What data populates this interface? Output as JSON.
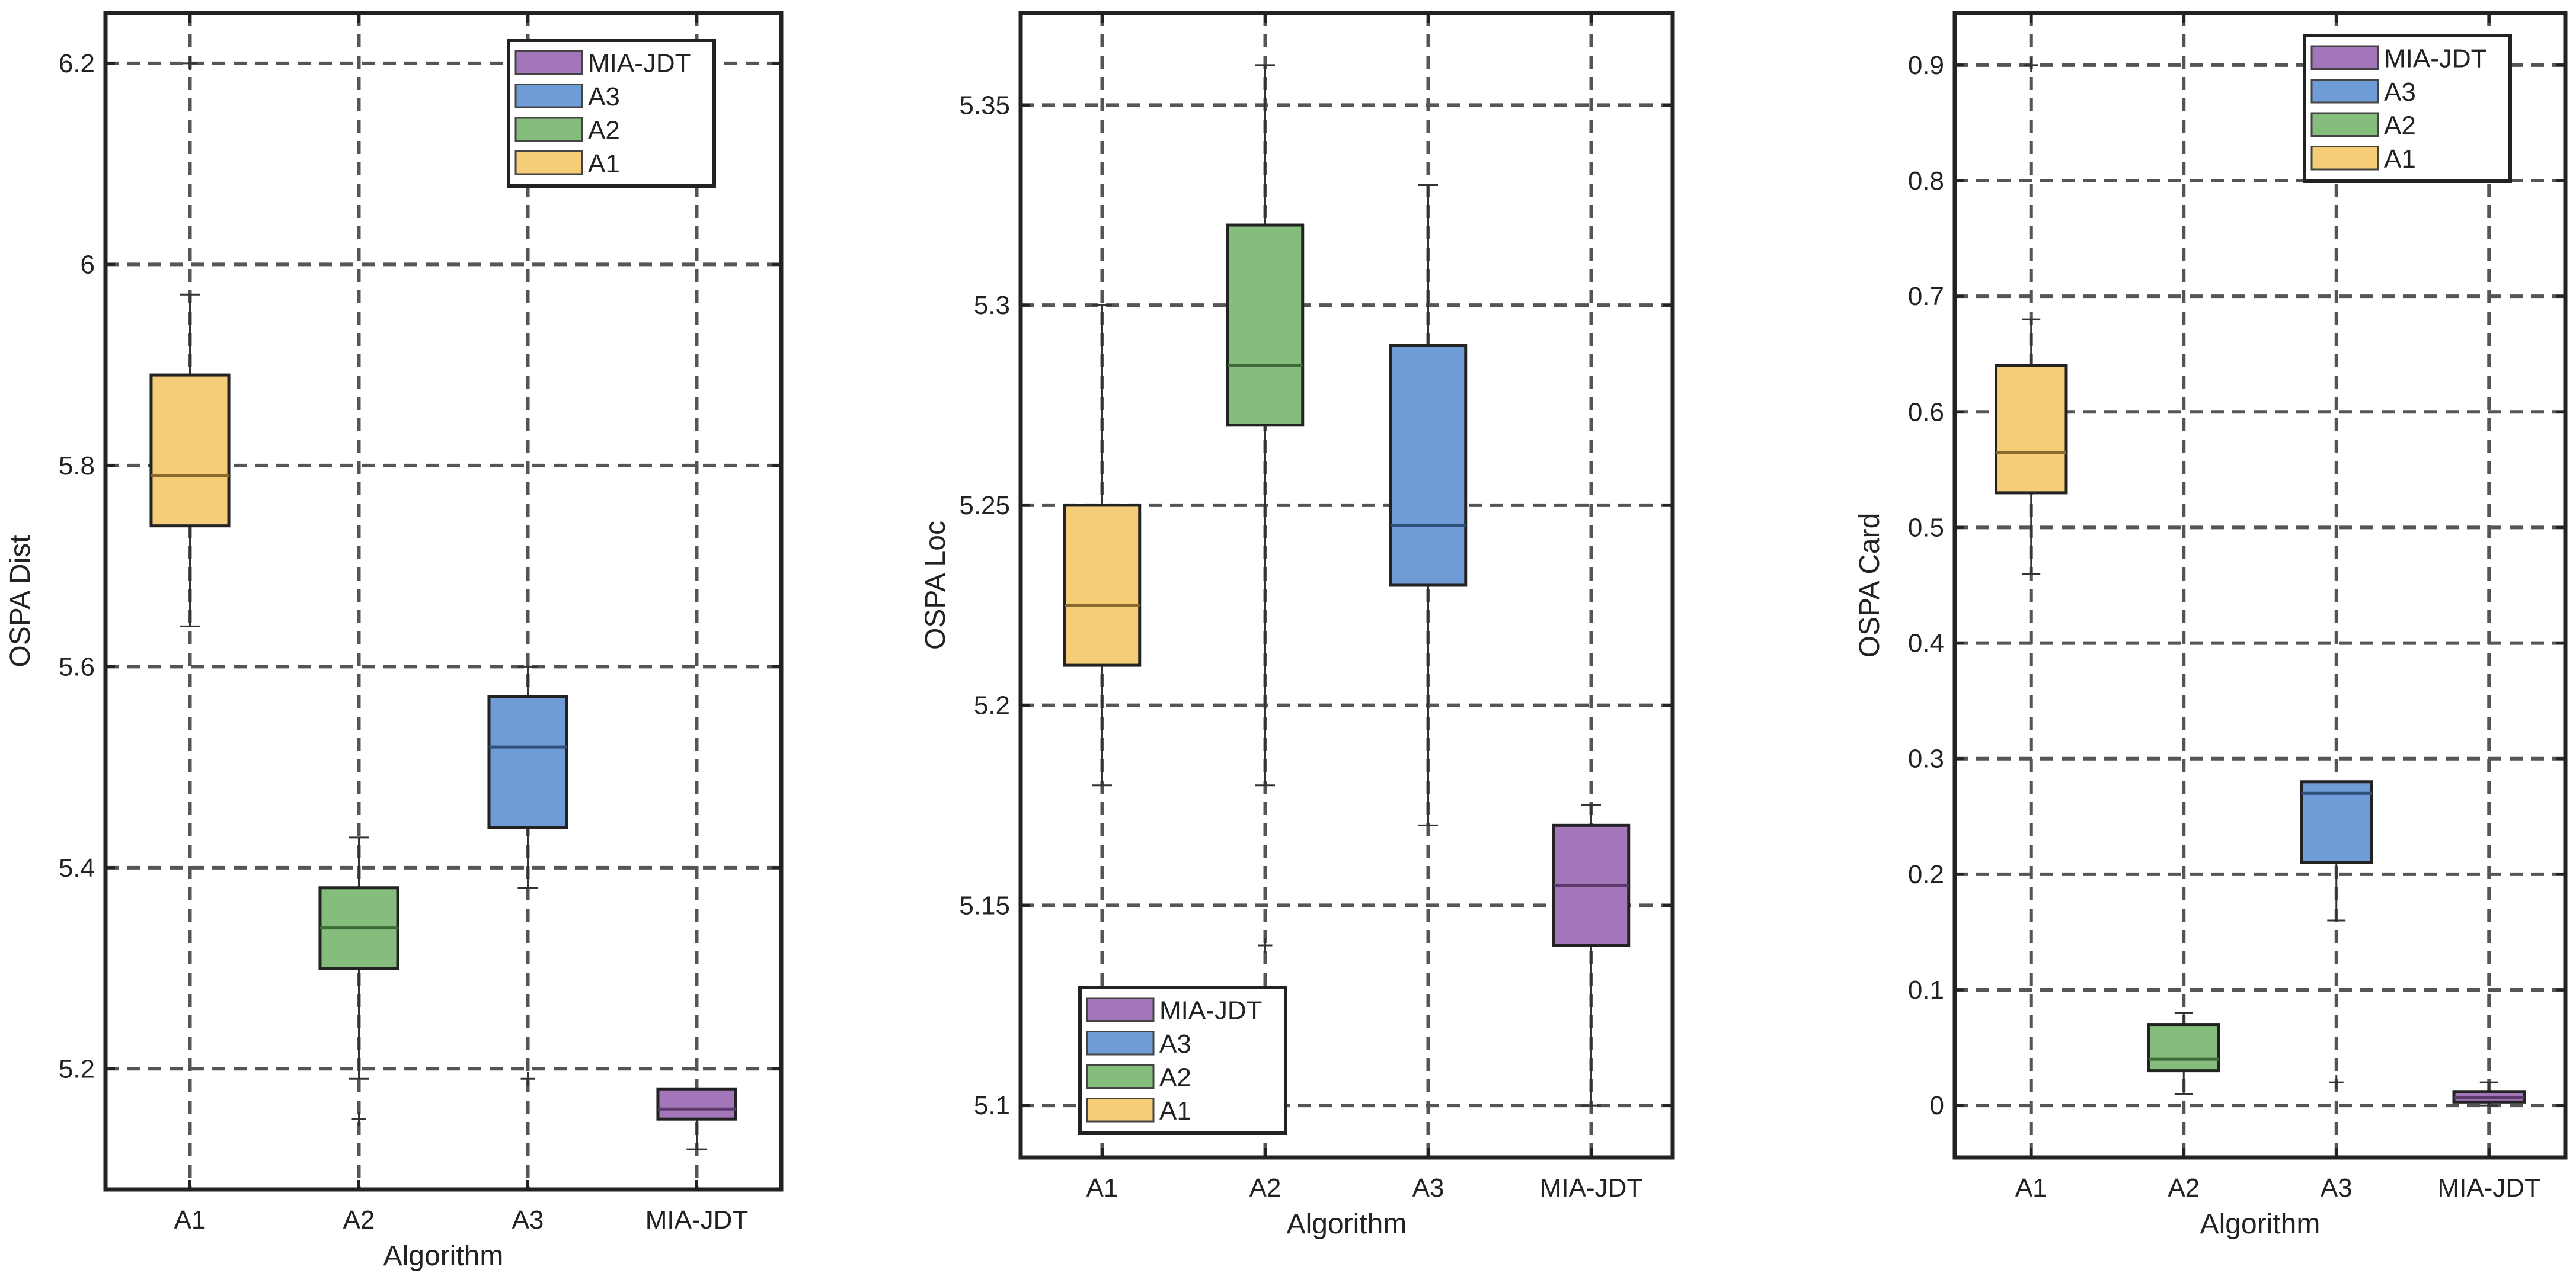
{
  "colors": {
    "A1": "#f5cd79",
    "A2": "#85bd7c",
    "A3": "#6f9bd6",
    "MIA-JDT": "#a276b9",
    "median": {
      "A1": "#8a6a2c",
      "A2": "#3f6a39",
      "A3": "#2f4f7a",
      "MIA-JDT": "#5b3a6b"
    }
  },
  "chart_data": [
    {
      "type": "box",
      "title": "",
      "xlabel": "Algorithm",
      "ylabel": "OSPA Dist",
      "categories": [
        "A1",
        "A2",
        "A3",
        "MIA-JDT"
      ],
      "ylim": [
        5.08,
        6.25
      ],
      "yticks": [
        5.2,
        5.4,
        5.6,
        5.8,
        6,
        6.2
      ],
      "ytick_labels": [
        "5.2",
        "5.4",
        "5.6",
        "5.8",
        "6",
        "6.2"
      ],
      "legend_position": "top-right",
      "legend": [
        "MIA-JDT",
        "A3",
        "A2",
        "A1"
      ],
      "boxes": [
        {
          "name": "A1",
          "whisker_low": 5.64,
          "q1": 5.74,
          "median": 5.79,
          "q3": 5.89,
          "whisker_high": 5.97,
          "outliers": [
            6.2
          ]
        },
        {
          "name": "A2",
          "whisker_low": 5.19,
          "q1": 5.3,
          "median": 5.34,
          "q3": 5.38,
          "whisker_high": 5.43,
          "outliers": [
            5.15
          ]
        },
        {
          "name": "A3",
          "whisker_low": 5.38,
          "q1": 5.44,
          "median": 5.52,
          "q3": 5.57,
          "whisker_high": 5.6,
          "outliers": [
            5.19
          ]
        },
        {
          "name": "MIA-JDT",
          "whisker_low": 5.12,
          "q1": 5.15,
          "median": 5.16,
          "q3": 5.18,
          "whisker_high": 5.18,
          "outliers": []
        }
      ]
    },
    {
      "type": "box",
      "title": "",
      "xlabel": "Algorithm",
      "ylabel": "OSPA Loc",
      "categories": [
        "A1",
        "A2",
        "A3",
        "MIA-JDT"
      ],
      "ylim": [
        5.087,
        5.373
      ],
      "yticks": [
        5.1,
        5.15,
        5.2,
        5.25,
        5.3,
        5.35
      ],
      "ytick_labels": [
        "5.1",
        "5.15",
        "5.2",
        "5.25",
        "5.3",
        "5.35"
      ],
      "legend_position": "bottom-left",
      "legend": [
        "MIA-JDT",
        "A3",
        "A2",
        "A1"
      ],
      "boxes": [
        {
          "name": "A1",
          "whisker_low": 5.18,
          "q1": 5.21,
          "median": 5.225,
          "q3": 5.25,
          "whisker_high": 5.3,
          "outliers": []
        },
        {
          "name": "A2",
          "whisker_low": 5.18,
          "q1": 5.27,
          "median": 5.285,
          "q3": 5.32,
          "whisker_high": 5.36,
          "outliers": [
            5.14
          ]
        },
        {
          "name": "A3",
          "whisker_low": 5.17,
          "q1": 5.23,
          "median": 5.245,
          "q3": 5.29,
          "whisker_high": 5.33,
          "outliers": []
        },
        {
          "name": "MIA-JDT",
          "whisker_low": 5.1,
          "q1": 5.14,
          "median": 5.155,
          "q3": 5.17,
          "whisker_high": 5.175,
          "outliers": []
        }
      ]
    },
    {
      "type": "box",
      "title": "",
      "xlabel": "Algorithm",
      "ylabel": "OSPA Card",
      "categories": [
        "A1",
        "A2",
        "A3",
        "MIA-JDT"
      ],
      "ylim": [
        -0.045,
        0.945
      ],
      "yticks": [
        0,
        0.1,
        0.2,
        0.3,
        0.4,
        0.5,
        0.6,
        0.7,
        0.8,
        0.9
      ],
      "ytick_labels": [
        "0",
        "0.1",
        "0.2",
        "0.3",
        "0.4",
        "0.5",
        "0.6",
        "0.7",
        "0.8",
        "0.9"
      ],
      "legend_position": "top-right",
      "legend": [
        "MIA-JDT",
        "A3",
        "A2",
        "A1"
      ],
      "boxes": [
        {
          "name": "A1",
          "whisker_low": 0.46,
          "q1": 0.53,
          "median": 0.565,
          "q3": 0.64,
          "whisker_high": 0.68,
          "outliers": [
            0.9
          ]
        },
        {
          "name": "A2",
          "whisker_low": 0.01,
          "q1": 0.03,
          "median": 0.04,
          "q3": 0.07,
          "whisker_high": 0.08,
          "outliers": []
        },
        {
          "name": "A3",
          "whisker_low": 0.16,
          "q1": 0.21,
          "median": 0.27,
          "q3": 0.28,
          "whisker_high": 0.28,
          "outliers": [
            0.02
          ]
        },
        {
          "name": "MIA-JDT",
          "whisker_low": 0.0,
          "q1": 0.003,
          "median": 0.007,
          "q3": 0.012,
          "whisker_high": 0.02,
          "outliers": []
        }
      ]
    }
  ]
}
